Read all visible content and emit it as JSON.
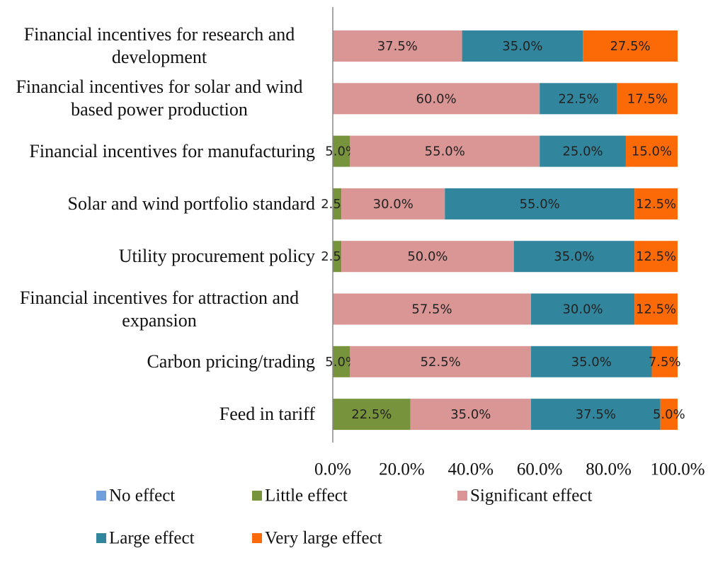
{
  "chart_data": {
    "type": "stacked-bar-horizontal",
    "categories": [
      "Financial incentives for research and development",
      "Financial incentives for solar and wind based power production",
      "Financial incentives for manufacturing",
      "Solar and wind portfolio standard",
      "Utility procurement policy",
      "Financial incentives for attraction and expansion",
      "Carbon pricing/trading",
      "Feed in tariff"
    ],
    "series": [
      {
        "name": "No effect",
        "color": "#6fa0dc",
        "values": [
          0,
          0,
          0,
          0,
          0,
          0,
          0,
          0
        ],
        "value_labels": [
          null,
          null,
          null,
          null,
          null,
          null,
          null,
          null
        ]
      },
      {
        "name": "Little effect",
        "color": "#77933c",
        "values": [
          0,
          0,
          5.0,
          2.5,
          2.5,
          0,
          5.0,
          22.5
        ],
        "value_labels": [
          null,
          null,
          "5.0%",
          "2.5%",
          "2.5%",
          null,
          "5.0%",
          "22.5%"
        ]
      },
      {
        "name": "Significant effect",
        "color": "#d99694",
        "values": [
          37.5,
          60.0,
          55.0,
          30.0,
          50.0,
          57.5,
          52.5,
          35.0
        ],
        "value_labels": [
          "37.5%",
          "60.0%",
          "55.0%",
          "30.0%",
          "50.0%",
          "57.5%",
          "52.5%",
          "35.0%"
        ]
      },
      {
        "name": "Large effect",
        "color": "#31859c",
        "values": [
          35.0,
          22.5,
          25.0,
          55.0,
          35.0,
          30.0,
          35.0,
          37.5
        ],
        "value_labels": [
          "35.0%",
          "22.5%",
          "25.0%",
          "55.0%",
          "35.0%",
          "30.0%",
          "35.0%",
          "37.5%"
        ]
      },
      {
        "name": "Very large effect",
        "color": "#fc6a08",
        "values": [
          27.5,
          17.5,
          15.0,
          12.5,
          12.5,
          12.5,
          7.5,
          5.0
        ],
        "value_labels": [
          "27.5%",
          "17.5%",
          "15.0%",
          "12.5%",
          "12.5%",
          "12.5%",
          "7.5%",
          "5.0%"
        ]
      }
    ],
    "xlim": [
      0,
      100
    ],
    "xticks": [
      {
        "value": 0,
        "label": "0.0%"
      },
      {
        "value": 20,
        "label": "20.0%"
      },
      {
        "value": 40,
        "label": "40.0%"
      },
      {
        "value": 60,
        "label": "60.0%"
      },
      {
        "value": 80,
        "label": "80.0%"
      },
      {
        "value": 100,
        "label": "100.0%"
      }
    ],
    "legend": "bottom"
  }
}
